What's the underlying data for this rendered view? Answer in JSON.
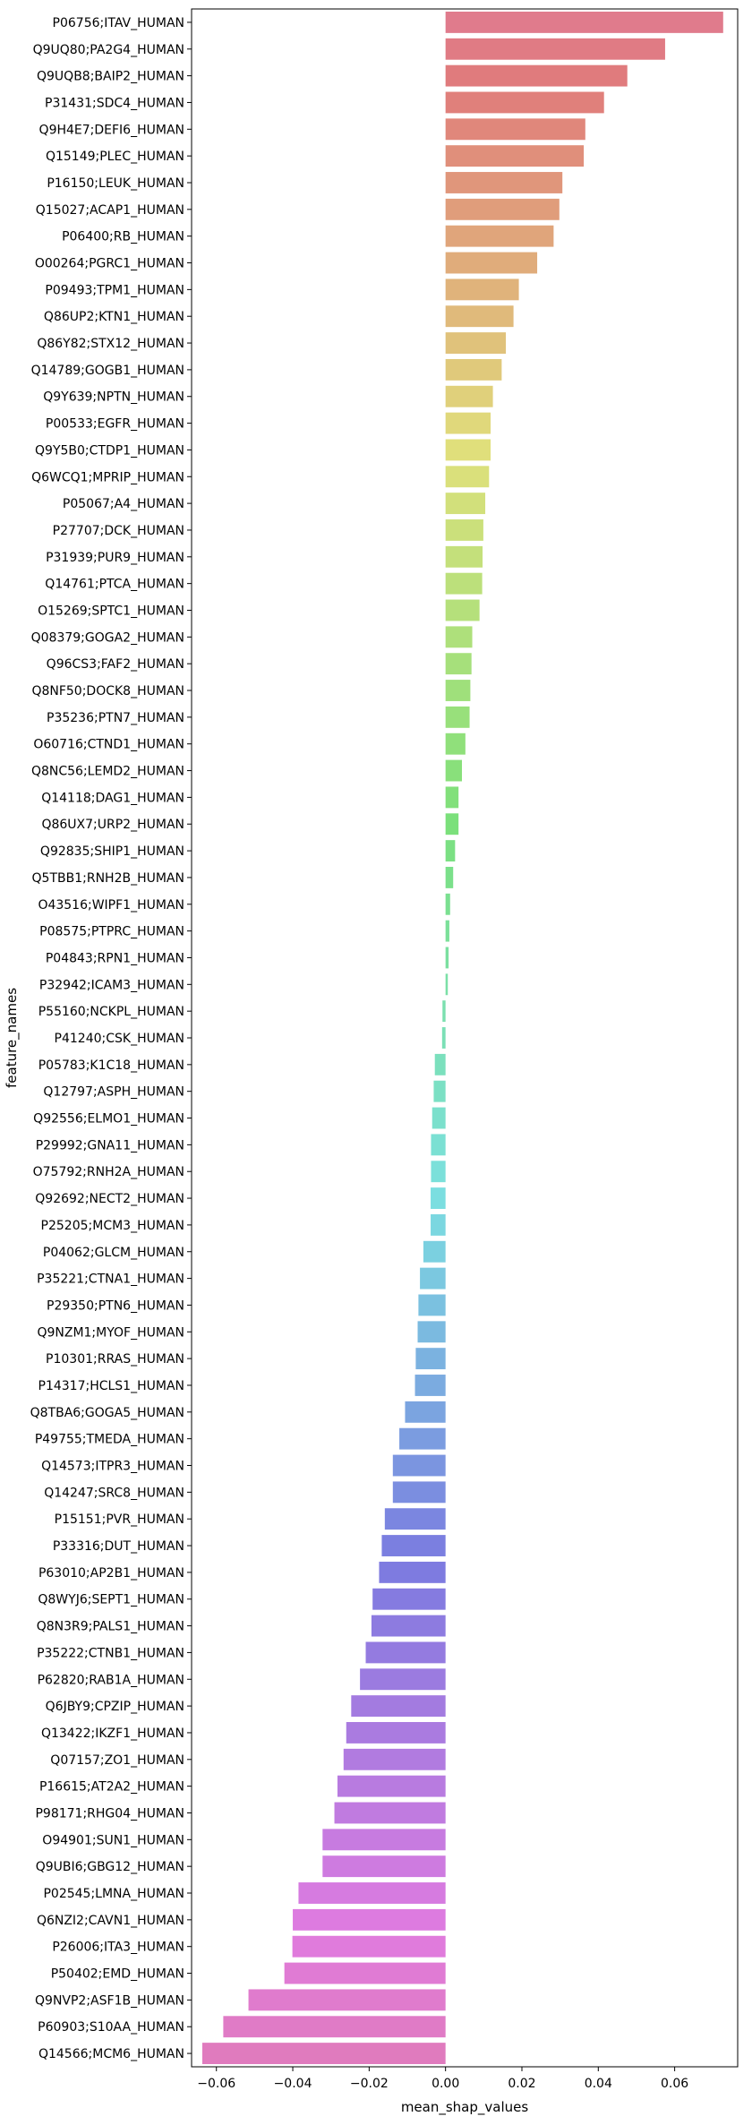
{
  "chart_data": {
    "type": "bar",
    "orientation": "horizontal",
    "xlabel": "mean_shap_values",
    "ylabel": "feature_names",
    "xlim": [
      -0.0665,
      0.0765
    ],
    "xticks": [
      -0.06,
      -0.04,
      -0.02,
      0.0,
      0.02,
      0.04,
      0.06
    ],
    "xtick_labels": [
      "−0.06",
      "−0.04",
      "−0.02",
      "0.00",
      "0.02",
      "0.04",
      "0.06"
    ],
    "grid": false,
    "legend": "none",
    "categories": [
      "P06756;ITAV_HUMAN",
      "Q9UQ80;PA2G4_HUMAN",
      "Q9UQB8;BAIP2_HUMAN",
      "P31431;SDC4_HUMAN",
      "Q9H4E7;DEFI6_HUMAN",
      "Q15149;PLEC_HUMAN",
      "P16150;LEUK_HUMAN",
      "Q15027;ACAP1_HUMAN",
      "P06400;RB_HUMAN",
      "O00264;PGRC1_HUMAN",
      "P09493;TPM1_HUMAN",
      "Q86UP2;KTN1_HUMAN",
      "Q86Y82;STX12_HUMAN",
      "Q14789;GOGB1_HUMAN",
      "Q9Y639;NPTN_HUMAN",
      "P00533;EGFR_HUMAN",
      "Q9Y5B0;CTDP1_HUMAN",
      "Q6WCQ1;MPRIP_HUMAN",
      "P05067;A4_HUMAN",
      "P27707;DCK_HUMAN",
      "P31939;PUR9_HUMAN",
      "Q14761;PTCA_HUMAN",
      "O15269;SPTC1_HUMAN",
      "Q08379;GOGA2_HUMAN",
      "Q96CS3;FAF2_HUMAN",
      "Q8NF50;DOCK8_HUMAN",
      "P35236;PTN7_HUMAN",
      "O60716;CTND1_HUMAN",
      "Q8NC56;LEMD2_HUMAN",
      "Q14118;DAG1_HUMAN",
      "Q86UX7;URP2_HUMAN",
      "Q92835;SHIP1_HUMAN",
      "Q5TBB1;RNH2B_HUMAN",
      "O43516;WIPF1_HUMAN",
      "P08575;PTPRC_HUMAN",
      "P04843;RPN1_HUMAN",
      "P32942;ICAM3_HUMAN",
      "P55160;NCKPL_HUMAN",
      "P41240;CSK_HUMAN",
      "P05783;K1C18_HUMAN",
      "Q12797;ASPH_HUMAN",
      "Q92556;ELMO1_HUMAN",
      "P29992;GNA11_HUMAN",
      "O75792;RNH2A_HUMAN",
      "Q92692;NECT2_HUMAN",
      "P25205;MCM3_HUMAN",
      "P04062;GLCM_HUMAN",
      "P35221;CTNA1_HUMAN",
      "P29350;PTN6_HUMAN",
      "Q9NZM1;MYOF_HUMAN",
      "P10301;RRAS_HUMAN",
      "P14317;HCLS1_HUMAN",
      "Q8TBA6;GOGA5_HUMAN",
      "P49755;TMEDA_HUMAN",
      "Q14573;ITPR3_HUMAN",
      "Q14247;SRC8_HUMAN",
      "P15151;PVR_HUMAN",
      "P33316;DUT_HUMAN",
      "P63010;AP2B1_HUMAN",
      "Q8WYJ6;SEPT1_HUMAN",
      "Q8N3R9;PALS1_HUMAN",
      "P35222;CTNB1_HUMAN",
      "P62820;RAB1A_HUMAN",
      "Q6JBY9;CPZIP_HUMAN",
      "Q13422;IKZF1_HUMAN",
      "Q07157;ZO1_HUMAN",
      "P16615;AT2A2_HUMAN",
      "P98171;RHG04_HUMAN",
      "O94901;SUN1_HUMAN",
      "Q9UBI6;GBG12_HUMAN",
      "P02545;LMNA_HUMAN",
      "Q6NZI2;CAVN1_HUMAN",
      "P26006;ITA3_HUMAN",
      "P50402;EMD_HUMAN",
      "Q9NVP2;ASF1B_HUMAN",
      "P60903;S10AA_HUMAN",
      "Q14566;MCM6_HUMAN"
    ],
    "values": [
      0.0727,
      0.0575,
      0.0476,
      0.0415,
      0.0366,
      0.0362,
      0.0306,
      0.0298,
      0.0283,
      0.024,
      0.0192,
      0.0178,
      0.0158,
      0.0147,
      0.0124,
      0.0118,
      0.0118,
      0.0114,
      0.0104,
      0.0099,
      0.0097,
      0.0096,
      0.0089,
      0.007,
      0.0068,
      0.0065,
      0.0063,
      0.0052,
      0.0043,
      0.0034,
      0.0034,
      0.0025,
      0.002,
      0.0012,
      0.001,
      0.0008,
      0.0006,
      -0.0008,
      -0.0009,
      -0.0028,
      -0.0031,
      -0.0035,
      -0.0038,
      -0.0038,
      -0.0039,
      -0.0039,
      -0.0058,
      -0.0067,
      -0.0071,
      -0.0073,
      -0.0078,
      -0.008,
      -0.0106,
      -0.0121,
      -0.0138,
      -0.0138,
      -0.0159,
      -0.0167,
      -0.0174,
      -0.0191,
      -0.0194,
      -0.0209,
      -0.0224,
      -0.0247,
      -0.026,
      -0.0267,
      -0.0283,
      -0.0291,
      -0.0322,
      -0.0322,
      -0.0385,
      -0.04,
      -0.0401,
      -0.0422,
      -0.0516,
      -0.0582,
      -0.0637
    ]
  }
}
